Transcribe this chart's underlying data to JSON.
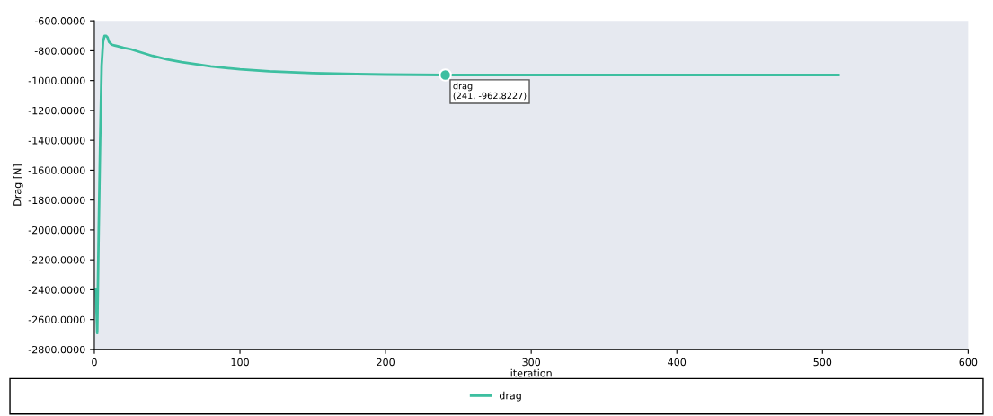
{
  "chart_data": {
    "type": "line",
    "xlabel": "iteration",
    "ylabel": "Drag [N]",
    "xlim": [
      0,
      600
    ],
    "xticks": [
      0,
      100,
      200,
      300,
      400,
      500,
      600
    ],
    "ylim": [
      -2800,
      -600
    ],
    "yticks": [
      {
        "value": -600,
        "label": "-600.0000"
      },
      {
        "value": -800,
        "label": "-800.0000"
      },
      {
        "value": -1000,
        "label": "-1000.0000"
      },
      {
        "value": -1200,
        "label": "-1200.0000"
      },
      {
        "value": -1400,
        "label": "-1400.0000"
      },
      {
        "value": -1600,
        "label": "-1600.0000"
      },
      {
        "value": -1800,
        "label": "-1800.0000"
      },
      {
        "value": -2000,
        "label": "-2000.0000"
      },
      {
        "value": -2200,
        "label": "-2200.0000"
      },
      {
        "value": -2400,
        "label": "-2400.0000"
      },
      {
        "value": -2600,
        "label": "-2600.0000"
      },
      {
        "value": -2800,
        "label": "-2800.0000"
      }
    ],
    "grid": false,
    "legend": "bottom",
    "marker": "none",
    "line_style": "solid",
    "annotations": [
      {
        "text": "drag\n(241, -962.8227)",
        "x": 241,
        "y": -962.8227
      }
    ],
    "series": [
      {
        "name": "drag",
        "color": "#3dbfa0",
        "x": [
          1,
          2,
          3,
          4,
          5,
          6,
          7,
          8,
          9,
          10,
          12,
          14,
          16,
          20,
          25,
          30,
          40,
          50,
          60,
          80,
          100,
          120,
          150,
          180,
          200,
          241,
          300,
          400,
          511
        ],
        "values": [
          -2400,
          -2690,
          -2000,
          -1400,
          -900,
          -740,
          -700,
          -700,
          -710,
          -740,
          -760,
          -765,
          -770,
          -780,
          -790,
          -805,
          -835,
          -858,
          -877,
          -905,
          -925,
          -938,
          -950,
          -957,
          -960,
          -963,
          -963,
          -963,
          -963
        ]
      }
    ]
  }
}
